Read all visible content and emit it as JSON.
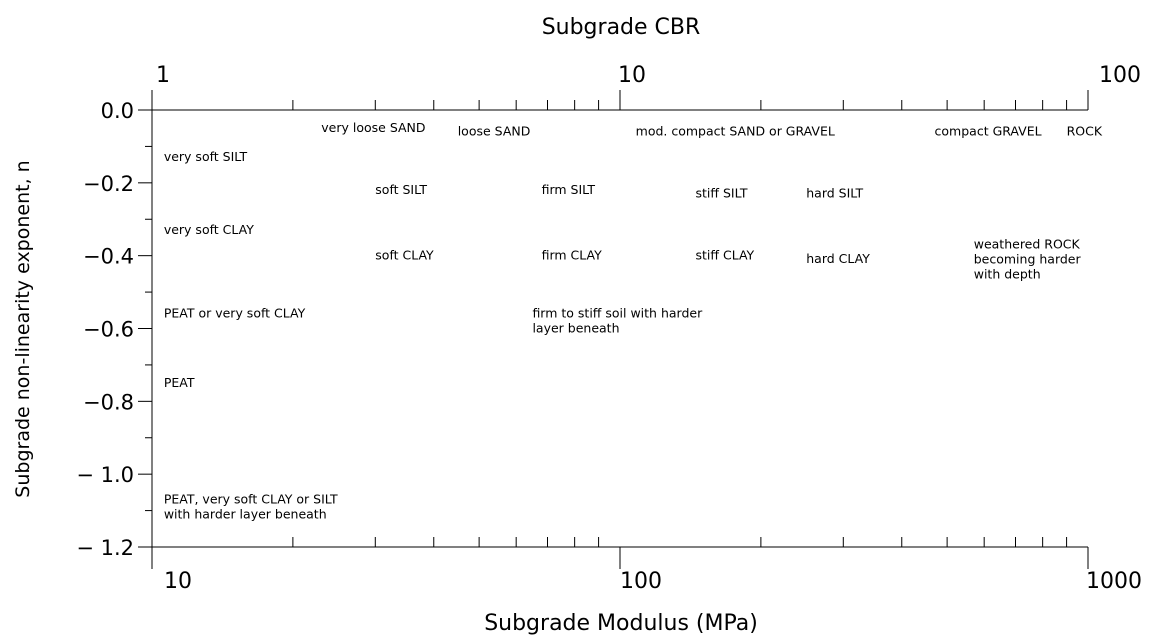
{
  "chart_data": {
    "type": "scatter",
    "title": "Subgrade CBR",
    "xlabel": "Subgrade Modulus (MPa)",
    "ylabel": "Subgrade non-linearity exponent, n",
    "x_scale": "log",
    "xlim": [
      10,
      1000
    ],
    "ylim": [
      -1.2,
      0.0
    ],
    "x_ticks": [
      {
        "value": 10,
        "label": "10"
      },
      {
        "value": 100,
        "label": "100"
      },
      {
        "value": 1000,
        "label": "1000"
      }
    ],
    "top_axis": {
      "label": "Subgrade CBR",
      "scale": "log",
      "range": [
        1,
        100
      ],
      "ticks": [
        {
          "value": 1,
          "label": "1"
        },
        {
          "value": 10,
          "label": "10"
        },
        {
          "value": 100,
          "label": "100"
        }
      ]
    },
    "y_ticks": [
      {
        "value": 0.0,
        "label": "0.0"
      },
      {
        "value": -0.2,
        "label": "−0.2"
      },
      {
        "value": -0.4,
        "label": "−0.4"
      },
      {
        "value": -0.6,
        "label": "−0.6"
      },
      {
        "value": -0.8,
        "label": "−0.8"
      },
      {
        "value": -1.0,
        "label": "− 1.0"
      },
      {
        "value": -1.2,
        "label": "− 1.2"
      }
    ],
    "grid": false,
    "annotations": [
      {
        "lines": [
          "very soft SILT"
        ],
        "x": 10.6,
        "y": -0.14
      },
      {
        "lines": [
          "very soft CLAY"
        ],
        "x": 10.6,
        "y": -0.34
      },
      {
        "lines": [
          "PEAT or very soft CLAY"
        ],
        "x": 10.6,
        "y": -0.57
      },
      {
        "lines": [
          "PEAT"
        ],
        "x": 10.6,
        "y": -0.76
      },
      {
        "lines": [
          "PEAT, very soft CLAY or SILT",
          "with harder layer beneath"
        ],
        "x": 10.6,
        "y": -1.08
      },
      {
        "lines": [
          "very loose SAND"
        ],
        "x": 23.0,
        "y": -0.06
      },
      {
        "lines": [
          "loose SAND"
        ],
        "x": 45.0,
        "y": -0.07
      },
      {
        "lines": [
          "mod. compact SAND or GRAVEL"
        ],
        "x": 108.0,
        "y": -0.07
      },
      {
        "lines": [
          "compact GRAVEL"
        ],
        "x": 470.0,
        "y": -0.07
      },
      {
        "lines": [
          "ROCK"
        ],
        "x": 900.0,
        "y": -0.07
      },
      {
        "lines": [
          "soft SILT"
        ],
        "x": 30.0,
        "y": -0.23
      },
      {
        "lines": [
          "firm SILT"
        ],
        "x": 68.0,
        "y": -0.23
      },
      {
        "lines": [
          "stiff SILT"
        ],
        "x": 145.0,
        "y": -0.24
      },
      {
        "lines": [
          "hard SILT"
        ],
        "x": 250.0,
        "y": -0.24
      },
      {
        "lines": [
          "soft CLAY"
        ],
        "x": 30.0,
        "y": -0.41
      },
      {
        "lines": [
          "firm CLAY"
        ],
        "x": 68.0,
        "y": -0.41
      },
      {
        "lines": [
          "stiff CLAY"
        ],
        "x": 145.0,
        "y": -0.41
      },
      {
        "lines": [
          "hard CLAY"
        ],
        "x": 250.0,
        "y": -0.42
      },
      {
        "lines": [
          "weathered ROCK",
          "becoming harder",
          "with depth"
        ],
        "x": 570.0,
        "y": -0.38
      },
      {
        "lines": [
          "firm to stiff soil with harder",
          "layer beneath"
        ],
        "x": 65.0,
        "y": -0.57
      }
    ]
  }
}
